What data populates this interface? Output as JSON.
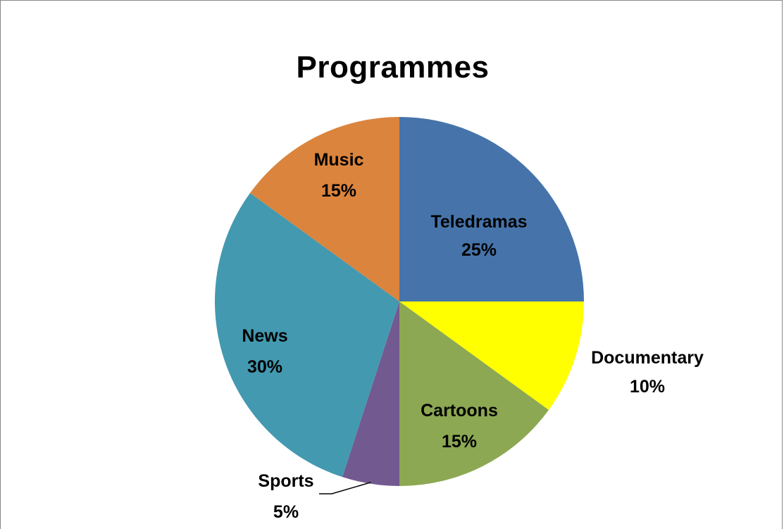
{
  "chart_data": {
    "type": "pie",
    "title": "Programmes",
    "slices": [
      {
        "label": "Teledramas",
        "percent_label": "25%",
        "value": 25,
        "color": "#4674AA"
      },
      {
        "label": "Documentary",
        "percent_label": "10%",
        "value": 10,
        "color": "#FFFF00"
      },
      {
        "label": "Cartoons",
        "percent_label": "15%",
        "value": 15,
        "color": "#8CA852"
      },
      {
        "label": "Sports",
        "percent_label": "5%",
        "value": 5,
        "color": "#72598F"
      },
      {
        "label": "News",
        "percent_label": "30%",
        "value": 30,
        "color": "#4399B0"
      },
      {
        "label": "Music",
        "percent_label": "15%",
        "value": 15,
        "color": "#DB843D"
      }
    ],
    "start": "top",
    "direction": "clockwise",
    "legend": "none",
    "data_labels": "category and percentage"
  }
}
